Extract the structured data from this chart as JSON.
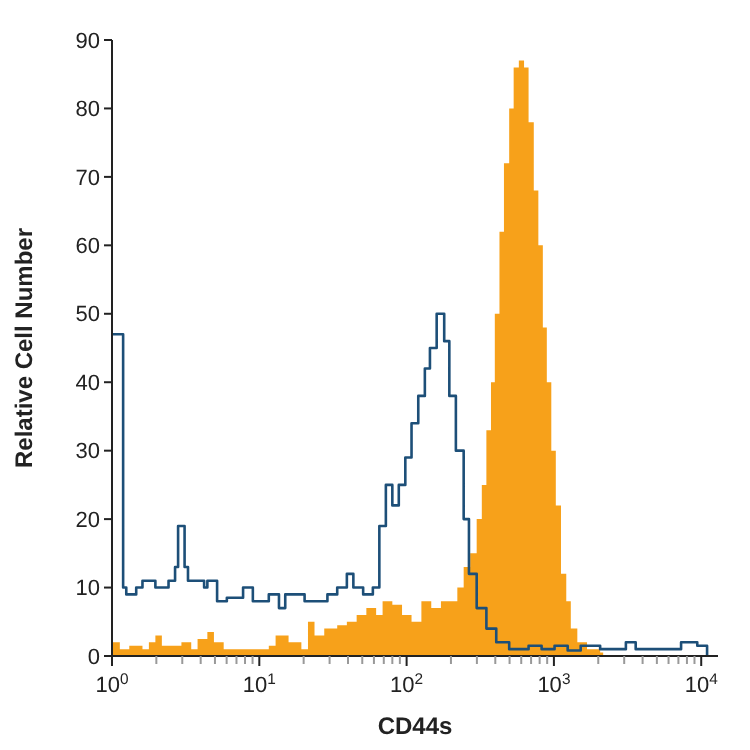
{
  "chart_data": {
    "type": "step",
    "xlabel": "CD44s",
    "ylabel": "Relative Cell Number",
    "log": "x",
    "xlim": [
      1,
      13000
    ],
    "ylim": [
      0,
      90
    ],
    "yticks": [
      0,
      10,
      20,
      30,
      40,
      50,
      60,
      70,
      80,
      90
    ],
    "xticks": [
      {
        "value": 1,
        "label": "10$^{0}$"
      },
      {
        "value": 2,
        "label": null
      },
      {
        "value": 3,
        "label": null
      },
      {
        "value": 4,
        "label": null
      },
      {
        "value": 5,
        "label": null
      },
      {
        "value": 6,
        "label": null
      },
      {
        "value": 7,
        "label": null
      },
      {
        "value": 8,
        "label": null
      },
      {
        "value": 9,
        "label": null
      },
      {
        "value": 10,
        "label": "10$^{1}$"
      },
      {
        "value": 20,
        "label": null
      },
      {
        "value": 30,
        "label": null
      },
      {
        "value": 40,
        "label": null
      },
      {
        "value": 50,
        "label": null
      },
      {
        "value": 60,
        "label": null
      },
      {
        "value": 70,
        "label": null
      },
      {
        "value": 80,
        "label": null
      },
      {
        "value": 90,
        "label": null
      },
      {
        "value": 100,
        "label": "10$^{2}$"
      },
      {
        "value": 200,
        "label": null
      },
      {
        "value": 300,
        "label": null
      },
      {
        "value": 400,
        "label": null
      },
      {
        "value": 500,
        "label": null
      },
      {
        "value": 600,
        "label": null
      },
      {
        "value": 700,
        "label": null
      },
      {
        "value": 800,
        "label": null
      },
      {
        "value": 900,
        "label": null
      },
      {
        "value": 1000,
        "label": "10$^{3}$"
      },
      {
        "value": 2000,
        "label": null
      },
      {
        "value": 3000,
        "label": null
      },
      {
        "value": 4000,
        "label": null
      },
      {
        "value": 5000,
        "label": null
      },
      {
        "value": 6000,
        "label": null
      },
      {
        "value": 7000,
        "label": null
      },
      {
        "value": 8000,
        "label": null
      },
      {
        "value": 9000,
        "label": null
      },
      {
        "value": 10000,
        "label": "10$^{4}$"
      }
    ],
    "grid": false,
    "series": [
      {
        "type": "area",
        "color": "#f7a11a",
        "x": [
          1,
          1.13,
          1.31,
          1.61,
          1.78,
          1.97,
          2.18,
          2.68,
          2.96,
          3.45,
          3.81,
          4.44,
          4.92,
          5.73,
          8.59,
          11.6,
          12.9,
          15.8,
          19.3,
          21.4,
          23.7,
          27.6,
          33.8,
          39.3,
          45.8,
          53.3,
          62.1,
          68.7,
          80,
          93.1,
          108,
          126,
          147,
          171,
          199,
          221,
          244,
          270,
          299,
          324,
          348,
          374,
          397,
          427,
          458,
          497,
          533,
          578,
          627,
          673,
          730,
          784,
          841,
          895,
          960,
          1030,
          1117,
          1213,
          1302,
          1442,
          1678,
          2060,
          2160
        ],
        "values": [
          2,
          1,
          1.5,
          1,
          2,
          3,
          1.5,
          1.5,
          2,
          1,
          2.5,
          3.5,
          2,
          1,
          1,
          1.5,
          3,
          2,
          1,
          5,
          3,
          4,
          4.5,
          5,
          6,
          7,
          6,
          8,
          7.5,
          6,
          5,
          8,
          7,
          8,
          8,
          10,
          13,
          15,
          20,
          25,
          33,
          40,
          50,
          62,
          72,
          80,
          86,
          87,
          86,
          78,
          68,
          60,
          48,
          40,
          30,
          22,
          12,
          8,
          4,
          2,
          1,
          0.5,
          0
        ]
      },
      {
        "color": "#1d4f78",
        "x": [
          1,
          1.19,
          1.25,
          1.46,
          1.61,
          1.97,
          2.42,
          2.68,
          2.81,
          3.11,
          3.28,
          4.22,
          4.44,
          5.17,
          6.02,
          7.76,
          9.04,
          11.6,
          13.6,
          15,
          20.3,
          29,
          33.8,
          39.3,
          43.5,
          50.7,
          59,
          65.3,
          72.3,
          80,
          88.5,
          98,
          108,
          120,
          133,
          144,
          160,
          180,
          195,
          216,
          244,
          265,
          299,
          348,
          406,
          497,
          673,
          825,
          1010,
          1240,
          1520,
          2060,
          3080,
          3590,
          7300,
          9400,
          10960
        ],
        "values": [
          47,
          10,
          9,
          10,
          11,
          10,
          11,
          13,
          19,
          13,
          11,
          10,
          11,
          8,
          8.5,
          10,
          8,
          9,
          7,
          9,
          8,
          9,
          10,
          12,
          10,
          9,
          10,
          19,
          25,
          22,
          25,
          29,
          34,
          38,
          42,
          45,
          50,
          46,
          38,
          30,
          20,
          12,
          7,
          4,
          2,
          1,
          1.5,
          1,
          1.5,
          0.8,
          1.5,
          1,
          2,
          1,
          2,
          1.5,
          0
        ]
      }
    ]
  }
}
